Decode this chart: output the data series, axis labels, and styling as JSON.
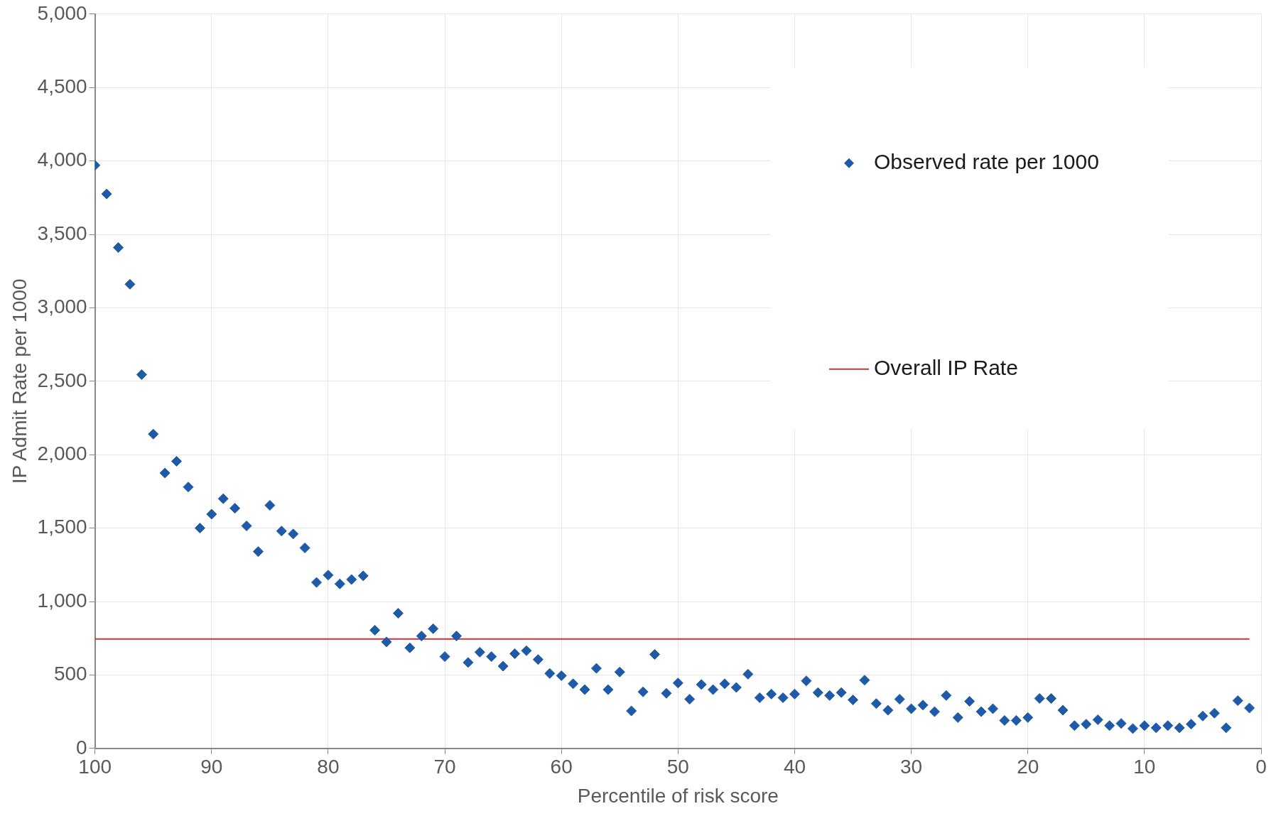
{
  "chart_data": {
    "type": "scatter",
    "xlabel": "Percentile of risk score",
    "ylabel": "IP Admit Rate per 1000",
    "xlim": [
      100,
      0
    ],
    "xticks": [
      100,
      90,
      80,
      70,
      60,
      50,
      40,
      30,
      20,
      10,
      0
    ],
    "ylim": [
      0,
      5000
    ],
    "yticks": [
      0,
      500,
      {
        "value": 1000,
        "label": "1,000"
      },
      {
        "value": 1500,
        "label": "1,500"
      },
      {
        "value": 2000,
        "label": "2,000"
      },
      {
        "value": 2500,
        "label": "2,500"
      },
      {
        "value": 3000,
        "label": "3,000"
      },
      {
        "value": 3500,
        "label": "3,500"
      },
      {
        "value": 4000,
        "label": "4,000"
      },
      {
        "value": 4500,
        "label": "4,500"
      },
      {
        "value": 5000,
        "label": "5,000"
      }
    ],
    "grid": true,
    "legend": "top right",
    "marker": "diamond",
    "series": [
      {
        "name": "Observed rate per 1000",
        "color": "#1f5aa8",
        "x": [
          100,
          99,
          98,
          97,
          96,
          95,
          94,
          93,
          92,
          91,
          90,
          89,
          88,
          87,
          86,
          85,
          84,
          83,
          82,
          81,
          80,
          79,
          78,
          77,
          76,
          75,
          74,
          73,
          72,
          71,
          70,
          69,
          68,
          67,
          66,
          65,
          64,
          63,
          62,
          61,
          60,
          59,
          58,
          57,
          56,
          55,
          54,
          53,
          52,
          51,
          50,
          49,
          48,
          47,
          46,
          45,
          44,
          43,
          42,
          41,
          40,
          39,
          38,
          37,
          36,
          35,
          34,
          33,
          32,
          31,
          30,
          29,
          28,
          27,
          26,
          25,
          24,
          23,
          22,
          21,
          20,
          19,
          18,
          17,
          16,
          15,
          14,
          13,
          12,
          11,
          10,
          9,
          8,
          7,
          6,
          5,
          4,
          3,
          2,
          1
        ],
        "values": [
          3970,
          3775,
          3410,
          3160,
          2545,
          2140,
          1875,
          1955,
          1780,
          1500,
          1595,
          1700,
          1635,
          1515,
          1340,
          1655,
          1480,
          1460,
          1365,
          1130,
          1180,
          1120,
          1150,
          1175,
          805,
          725,
          920,
          685,
          765,
          815,
          625,
          765,
          585,
          655,
          625,
          560,
          645,
          665,
          605,
          510,
          495,
          440,
          400,
          545,
          400,
          520,
          255,
          385,
          640,
          375,
          445,
          335,
          435,
          400,
          440,
          415,
          505,
          345,
          370,
          345,
          370,
          460,
          380,
          360,
          380,
          330,
          465,
          305,
          260,
          335,
          270,
          295,
          250,
          360,
          210,
          320,
          250,
          270,
          190,
          190,
          210,
          340,
          340,
          260,
          155,
          165,
          195,
          155,
          170,
          135,
          155,
          140,
          155,
          140,
          165,
          220,
          240,
          140,
          325,
          275
        ]
      },
      {
        "name": "Overall IP Rate",
        "type": "line",
        "color": "#b83b3b",
        "marker": "none",
        "line_style": "solid",
        "x": [
          100,
          1
        ],
        "values": [
          745,
          745
        ]
      }
    ]
  }
}
